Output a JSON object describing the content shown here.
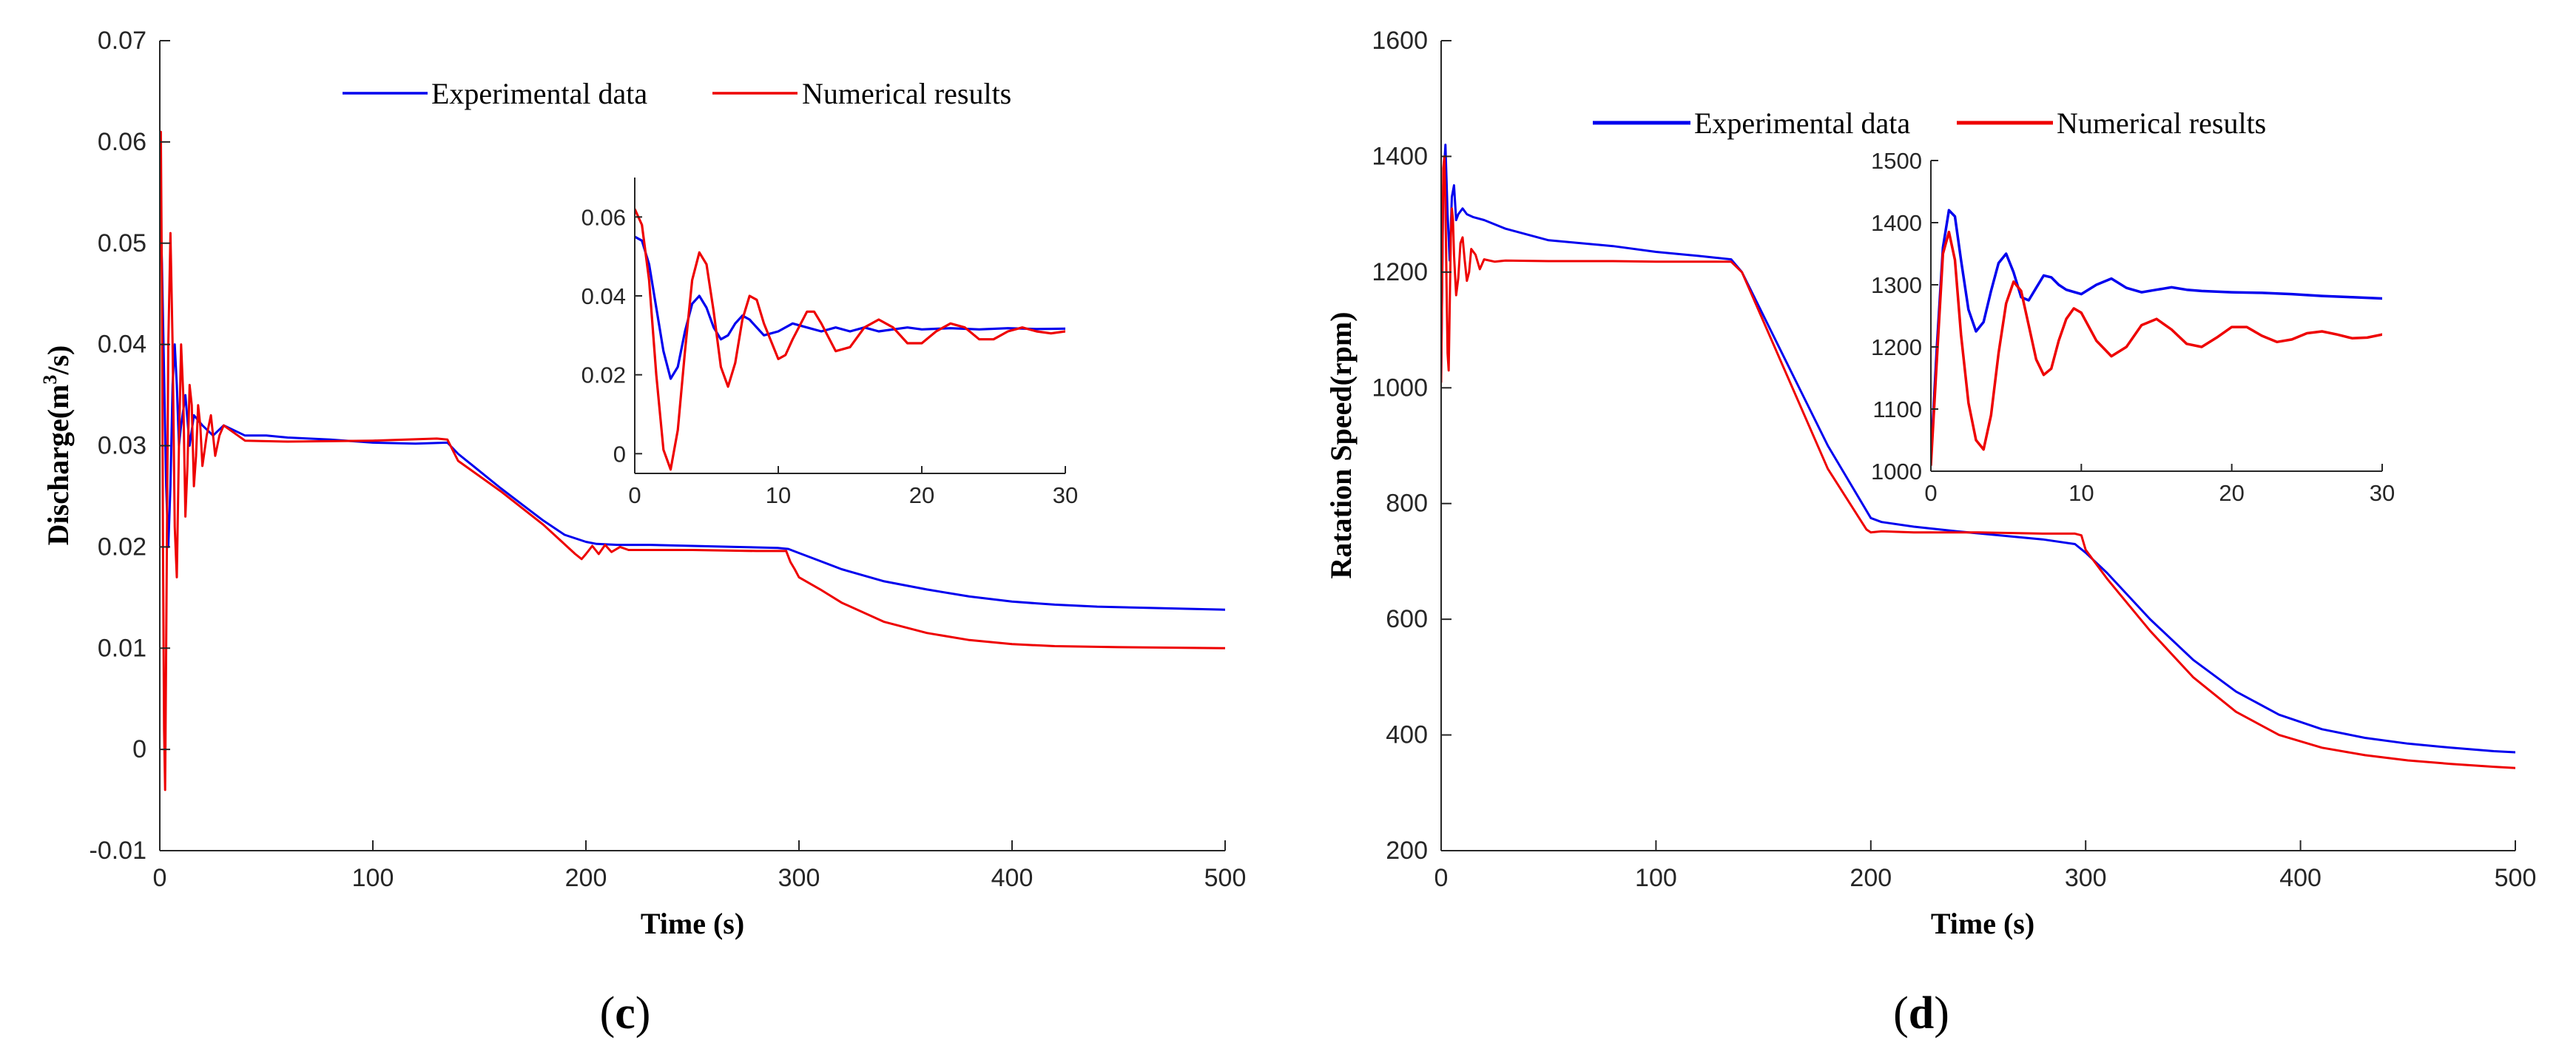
{
  "chart_data": [
    {
      "panel": "c",
      "type": "line",
      "panel_label": {
        "open": "(",
        "letter": "c",
        "close": ")"
      },
      "xlabel": "Time (s)",
      "ylabel": {
        "main": "Discharge(m",
        "sup": "3",
        "tail": "/s)"
      },
      "xlim": [
        0,
        500
      ],
      "ylim": [
        -0.01,
        0.07
      ],
      "x_ticks": [
        0,
        100,
        200,
        300,
        400,
        500
      ],
      "x_tick_labels": [
        "0",
        "100",
        "200",
        "300",
        "400",
        "500"
      ],
      "y_ticks": [
        -0.01,
        0,
        0.01,
        0.02,
        0.03,
        0.04,
        0.05,
        0.06,
        0.07
      ],
      "y_tick_labels": [
        "-0.01",
        "0",
        "0.01",
        "0.02",
        "0.03",
        "0.04",
        "0.05",
        "0.06",
        "0.07"
      ],
      "series": [
        {
          "name": "Experimental data",
          "color": "#0000ee",
          "x": [
            0,
            1,
            2,
            3,
            4,
            5,
            6,
            7,
            8,
            9,
            10,
            12,
            14,
            16,
            20,
            25,
            30,
            40,
            50,
            60,
            80,
            100,
            120,
            135,
            140,
            150,
            160,
            170,
            180,
            190,
            200,
            205,
            215,
            230,
            250,
            270,
            290,
            295,
            300,
            310,
            320,
            340,
            360,
            380,
            400,
            420,
            440,
            460,
            480,
            500
          ],
          "y": [
            0.055,
            0.048,
            0.037,
            0.026,
            0.02,
            0.026,
            0.036,
            0.04,
            0.036,
            0.03,
            0.032,
            0.035,
            0.03,
            0.033,
            0.032,
            0.031,
            0.032,
            0.031,
            0.031,
            0.0308,
            0.0306,
            0.0303,
            0.0302,
            0.0303,
            0.0292,
            0.0275,
            0.0258,
            0.0242,
            0.0226,
            0.0212,
            0.0205,
            0.0203,
            0.0202,
            0.0202,
            0.0201,
            0.02,
            0.0199,
            0.0198,
            0.0194,
            0.0186,
            0.0178,
            0.0166,
            0.0158,
            0.0151,
            0.0146,
            0.0143,
            0.0141,
            0.014,
            0.0139,
            0.0138
          ]
        },
        {
          "name": "Numerical results",
          "color": "#ee0000",
          "x": [
            0,
            0.5,
            1,
            1.5,
            2,
            2.5,
            3,
            4,
            5,
            6,
            7,
            8,
            9,
            10,
            11,
            12,
            13,
            14,
            15,
            16,
            17,
            18,
            19,
            20,
            22,
            24,
            26,
            28,
            30,
            40,
            60,
            100,
            130,
            135,
            140,
            160,
            180,
            195,
            198,
            200,
            203,
            206,
            209,
            212,
            216,
            220,
            230,
            250,
            280,
            294,
            296,
            298,
            300,
            310,
            320,
            340,
            360,
            380,
            400,
            420,
            450,
            500
          ],
          "y": [
            0.058,
            0.061,
            0.045,
            0.02,
            0.002,
            -0.004,
            0.01,
            0.04,
            0.051,
            0.04,
            0.022,
            0.017,
            0.03,
            0.04,
            0.035,
            0.023,
            0.028,
            0.036,
            0.034,
            0.026,
            0.029,
            0.034,
            0.032,
            0.028,
            0.031,
            0.033,
            0.029,
            0.031,
            0.032,
            0.0305,
            0.0304,
            0.0305,
            0.0307,
            0.0306,
            0.0285,
            0.0255,
            0.0222,
            0.0193,
            0.0188,
            0.0193,
            0.0201,
            0.0193,
            0.0202,
            0.0195,
            0.02,
            0.0197,
            0.0197,
            0.0197,
            0.0196,
            0.0196,
            0.0185,
            0.0178,
            0.017,
            0.0158,
            0.0145,
            0.0126,
            0.0115,
            0.0108,
            0.0104,
            0.0102,
            0.0101,
            0.01
          ]
        }
      ],
      "inset": {
        "xlim": [
          0,
          30
        ],
        "ylim": [
          -0.005,
          0.07
        ],
        "x_ticks": [
          0,
          10,
          20,
          30
        ],
        "x_tick_labels": [
          "0",
          "10",
          "20",
          "30"
        ],
        "y_ticks": [
          0,
          0.02,
          0.04,
          0.06
        ],
        "y_tick_labels": [
          "0",
          "0.02",
          "0.04",
          "0.06"
        ],
        "series": [
          {
            "name": "Experimental data",
            "color": "#0000ee",
            "x": [
              0,
              0.5,
              1,
              1.5,
              2,
              2.5,
              3,
              3.5,
              4,
              4.5,
              5,
              5.5,
              6,
              6.5,
              7,
              7.5,
              8,
              8.5,
              9,
              10,
              11,
              12,
              13,
              14,
              15,
              16,
              17,
              18,
              19,
              20,
              22,
              24,
              26,
              28,
              30
            ],
            "y": [
              0.055,
              0.054,
              0.048,
              0.037,
              0.026,
              0.019,
              0.022,
              0.031,
              0.038,
              0.04,
              0.037,
              0.032,
              0.029,
              0.03,
              0.033,
              0.035,
              0.034,
              0.032,
              0.03,
              0.031,
              0.033,
              0.032,
              0.031,
              0.032,
              0.031,
              0.032,
              0.031,
              0.0315,
              0.032,
              0.0315,
              0.0318,
              0.0315,
              0.0318,
              0.0316,
              0.0317
            ]
          },
          {
            "name": "Numerical results",
            "color": "#ee0000",
            "x": [
              0,
              0.5,
              1,
              1.5,
              2,
              2.5,
              3,
              3.5,
              4,
              4.5,
              5,
              5.5,
              6,
              6.5,
              7,
              7.5,
              8,
              8.5,
              9,
              10,
              10.5,
              11,
              12,
              12.5,
              13,
              14,
              15,
              16,
              17,
              18,
              19,
              20,
              21,
              22,
              23,
              24,
              25,
              26,
              27,
              28,
              29,
              30
            ],
            "y": [
              0.062,
              0.058,
              0.044,
              0.02,
              0.001,
              -0.004,
              0.006,
              0.026,
              0.044,
              0.051,
              0.048,
              0.036,
              0.022,
              0.017,
              0.023,
              0.034,
              0.04,
              0.039,
              0.033,
              0.024,
              0.025,
              0.029,
              0.036,
              0.036,
              0.033,
              0.026,
              0.027,
              0.032,
              0.034,
              0.032,
              0.028,
              0.028,
              0.031,
              0.033,
              0.032,
              0.029,
              0.029,
              0.031,
              0.032,
              0.031,
              0.0305,
              0.031
            ]
          }
        ]
      }
    },
    {
      "panel": "d",
      "type": "line",
      "panel_label": {
        "open": "(",
        "letter": "d",
        "close": ")"
      },
      "xlabel": "Time (s)",
      "ylabel": {
        "main": "Ratation Speed(rpm)"
      },
      "xlim": [
        0,
        500
      ],
      "ylim": [
        200,
        1600
      ],
      "x_ticks": [
        0,
        100,
        200,
        300,
        400,
        500
      ],
      "x_tick_labels": [
        "0",
        "100",
        "200",
        "300",
        "400",
        "500"
      ],
      "y_ticks": [
        200,
        400,
        600,
        800,
        1000,
        1200,
        1400,
        1600
      ],
      "y_tick_labels": [
        "200",
        "400",
        "600",
        "800",
        "1000",
        "1200",
        "1400",
        "1600"
      ],
      "series": [
        {
          "name": "Experimental data",
          "color": "#0000ee",
          "x": [
            0,
            1,
            2,
            3,
            4,
            5,
            6,
            7,
            8,
            10,
            12,
            15,
            20,
            30,
            50,
            80,
            100,
            120,
            135,
            140,
            160,
            180,
            200,
            205,
            220,
            240,
            260,
            280,
            295,
            300,
            310,
            330,
            350,
            370,
            390,
            410,
            430,
            450,
            470,
            490,
            500
          ],
          "y": [
            1020,
            1350,
            1420,
            1300,
            1220,
            1330,
            1350,
            1290,
            1300,
            1310,
            1300,
            1295,
            1290,
            1275,
            1255,
            1245,
            1235,
            1228,
            1222,
            1200,
            1050,
            900,
            775,
            768,
            760,
            752,
            745,
            738,
            730,
            715,
            680,
            600,
            530,
            475,
            435,
            410,
            395,
            385,
            378,
            372,
            370
          ]
        },
        {
          "name": "Numerical results",
          "color": "#ee0000",
          "x": [
            0,
            0.5,
            1,
            1.5,
            2,
            2.5,
            3,
            3.5,
            4,
            4.5,
            5,
            5.5,
            6,
            7,
            8,
            9,
            10,
            11,
            12,
            13,
            14,
            16,
            18,
            20,
            25,
            30,
            50,
            80,
            100,
            120,
            135,
            140,
            160,
            180,
            198,
            200,
            205,
            220,
            250,
            280,
            295,
            298,
            300,
            310,
            330,
            350,
            370,
            390,
            410,
            430,
            450,
            470,
            490,
            500
          ],
          "y": [
            1010,
            1200,
            1380,
            1400,
            1320,
            1180,
            1060,
            1030,
            1140,
            1260,
            1310,
            1290,
            1230,
            1160,
            1190,
            1250,
            1260,
            1220,
            1185,
            1200,
            1240,
            1230,
            1205,
            1222,
            1218,
            1220,
            1219,
            1219,
            1218,
            1218,
            1218,
            1200,
            1030,
            860,
            755,
            750,
            752,
            750,
            750,
            748,
            748,
            745,
            720,
            670,
            580,
            500,
            440,
            400,
            378,
            365,
            356,
            350,
            345,
            343
          ]
        }
      ],
      "inset": {
        "xlim": [
          0,
          30
        ],
        "ylim": [
          1000,
          1500
        ],
        "x_ticks": [
          0,
          10,
          20,
          30
        ],
        "x_tick_labels": [
          "0",
          "10",
          "20",
          "30"
        ],
        "y_ticks": [
          1000,
          1100,
          1200,
          1300,
          1400,
          1500
        ],
        "y_tick_labels": [
          "1000",
          "1100",
          "1200",
          "1300",
          "1400",
          "1500"
        ],
        "series": [
          {
            "name": "Experimental data",
            "color": "#0000ee",
            "x": [
              0,
              0.4,
              0.8,
              1.2,
              1.6,
              2,
              2.5,
              3,
              3.5,
              4,
              4.5,
              5,
              5.5,
              6,
              6.5,
              7,
              7.5,
              8,
              8.5,
              9,
              10,
              11,
              12,
              13,
              14,
              15,
              16,
              17,
              18,
              20,
              22,
              24,
              26,
              28,
              30
            ],
            "y": [
              1020,
              1200,
              1360,
              1420,
              1410,
              1340,
              1260,
              1225,
              1240,
              1290,
              1335,
              1350,
              1320,
              1280,
              1275,
              1295,
              1315,
              1312,
              1300,
              1292,
              1285,
              1300,
              1310,
              1295,
              1288,
              1292,
              1296,
              1292,
              1290,
              1288,
              1287,
              1285,
              1282,
              1280,
              1278
            ]
          },
          {
            "name": "Numerical results",
            "color": "#ee0000",
            "x": [
              0,
              0.4,
              0.8,
              1.2,
              1.6,
              2,
              2.5,
              3,
              3.5,
              4,
              4.5,
              5,
              5.5,
              6,
              6.5,
              7,
              7.5,
              8,
              8.5,
              9,
              9.5,
              10,
              11,
              12,
              13,
              14,
              15,
              16,
              17,
              18,
              19,
              20,
              21,
              22,
              23,
              24,
              25,
              26,
              27,
              28,
              29,
              30
            ],
            "y": [
              1010,
              1180,
              1350,
              1385,
              1340,
              1220,
              1110,
              1050,
              1035,
              1090,
              1190,
              1270,
              1305,
              1290,
              1235,
              1180,
              1155,
              1165,
              1210,
              1245,
              1262,
              1255,
              1210,
              1185,
              1200,
              1235,
              1245,
              1228,
              1205,
              1200,
              1215,
              1232,
              1232,
              1218,
              1208,
              1212,
              1222,
              1225,
              1220,
              1214,
              1215,
              1220
            ]
          }
        ]
      }
    }
  ]
}
